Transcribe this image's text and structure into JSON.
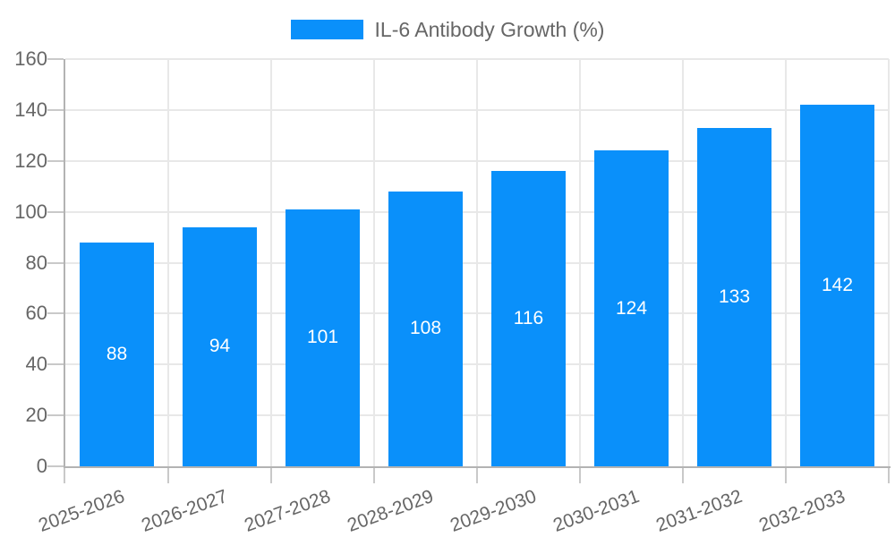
{
  "legend": {
    "label": "IL-6 Antibody Growth (%)"
  },
  "colors": {
    "bar": "#0a90fa",
    "axis_text": "#666666",
    "grid": "#e8e8e8",
    "axis_line": "#b3b3b3",
    "tick": "#c9c9c9",
    "datalabel": "#ffffff",
    "background": "#ffffff"
  },
  "chart_data": {
    "type": "bar",
    "title": "IL-6 Antibody Growth (%)",
    "categories": [
      "2025-2026",
      "2026-2027",
      "2027-2028",
      "2028-2029",
      "2029-2030",
      "2030-2031",
      "2031-2032",
      "2032-2033"
    ],
    "values": [
      88,
      94,
      101,
      108,
      116,
      124,
      133,
      142
    ],
    "series": [
      {
        "name": "IL-6 Antibody Growth (%)",
        "values": [
          88,
          94,
          101,
          108,
          116,
          124,
          133,
          142
        ]
      }
    ],
    "xlabel": "",
    "ylabel": "",
    "ylim": [
      0,
      160
    ],
    "yticks": [
      0,
      20,
      40,
      60,
      80,
      100,
      120,
      140,
      160
    ],
    "grid": true,
    "legend_position": "top-center",
    "datalabels_position": "inside-center",
    "x_tick_rotation_deg": -20
  }
}
